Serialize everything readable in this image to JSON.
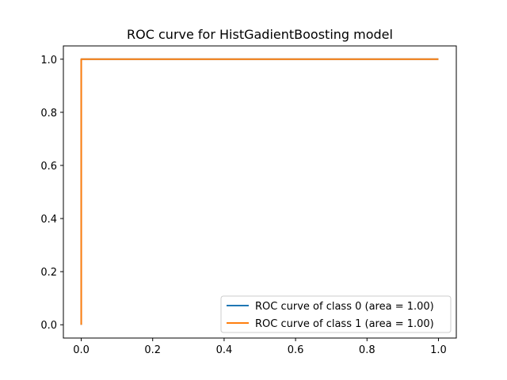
{
  "chart_data": {
    "type": "line",
    "title": "ROC curve for HistGadientBoosting model",
    "xlabel": "",
    "ylabel": "",
    "xlim": [
      -0.05,
      1.05
    ],
    "ylim": [
      -0.05,
      1.05
    ],
    "x_ticks": [
      0.0,
      0.2,
      0.4,
      0.6,
      0.8,
      1.0
    ],
    "y_ticks": [
      0.0,
      0.2,
      0.4,
      0.6,
      0.8,
      1.0
    ],
    "x_tick_labels": [
      "0.0",
      "0.2",
      "0.4",
      "0.6",
      "0.8",
      "1.0"
    ],
    "y_tick_labels": [
      "0.0",
      "0.2",
      "0.4",
      "0.6",
      "0.8",
      "1.0"
    ],
    "grid": false,
    "legend_position": "lower-right",
    "series": [
      {
        "name": "ROC curve of class 0 (area = 1.00)",
        "color": "#1f77b4",
        "x": [
          0.0,
          0.0,
          1.0
        ],
        "y": [
          0.0,
          1.0,
          1.0
        ]
      },
      {
        "name": "ROC curve of class 1 (area = 1.00)",
        "color": "#ff7f0e",
        "x": [
          0.0,
          0.0,
          1.0
        ],
        "y": [
          0.0,
          1.0,
          1.0
        ]
      }
    ]
  }
}
